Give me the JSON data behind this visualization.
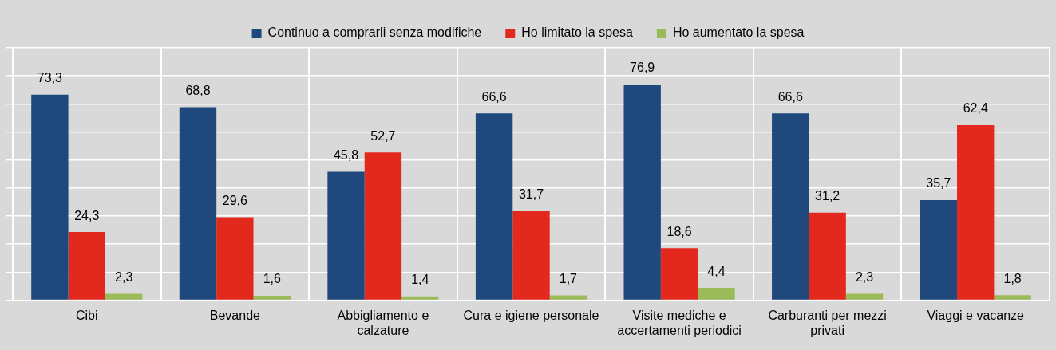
{
  "chart_data": {
    "type": "bar",
    "categories": [
      "Cibi",
      "Bevande",
      "Abbigliamento e calzature",
      "Cura e igiene personale",
      "Visite mediche e accertamenti periodici",
      "Carburanti per mezzi privati",
      "Viaggi e vacanze"
    ],
    "series": [
      {
        "name": "Continuo a comprarli senza modifiche",
        "color": "#1f497d",
        "values": [
          73.3,
          68.8,
          45.8,
          66.6,
          76.9,
          66.6,
          35.7
        ],
        "value_labels": [
          "73,3",
          "68,8",
          "45,8",
          "66,6",
          "76,9",
          "66,6",
          "35,7"
        ]
      },
      {
        "name": "Ho limitato la spesa",
        "color": "#e3281e",
        "values": [
          24.3,
          29.6,
          52.7,
          31.7,
          18.6,
          31.2,
          62.4
        ],
        "value_labels": [
          "24,3",
          "29,6",
          "52,7",
          "31,7",
          "18,6",
          "31,2",
          "62,4"
        ]
      },
      {
        "name": "Ho aumentato la spesa",
        "color": "#9bbb59",
        "values": [
          2.3,
          1.6,
          1.4,
          1.7,
          4.4,
          2.3,
          1.8
        ],
        "value_labels": [
          "2,3",
          "1,6",
          "1,4",
          "1,7",
          "4,4",
          "2,3",
          "1,8"
        ]
      }
    ],
    "ylim": [
      0,
      90
    ],
    "yticks": [
      {
        "value": 0,
        "label": null
      },
      {
        "value": 10,
        "label": null
      },
      {
        "value": 20,
        "label": null
      },
      {
        "value": 30,
        "label": null
      },
      {
        "value": 40,
        "label": null
      },
      {
        "value": 50,
        "label": null
      },
      {
        "value": 60,
        "label": null
      },
      {
        "value": 70,
        "label": null
      },
      {
        "value": 80,
        "label": null
      },
      {
        "value": 90,
        "label": null
      }
    ],
    "tick_labels": "x",
    "grid": true,
    "legend": "top"
  }
}
